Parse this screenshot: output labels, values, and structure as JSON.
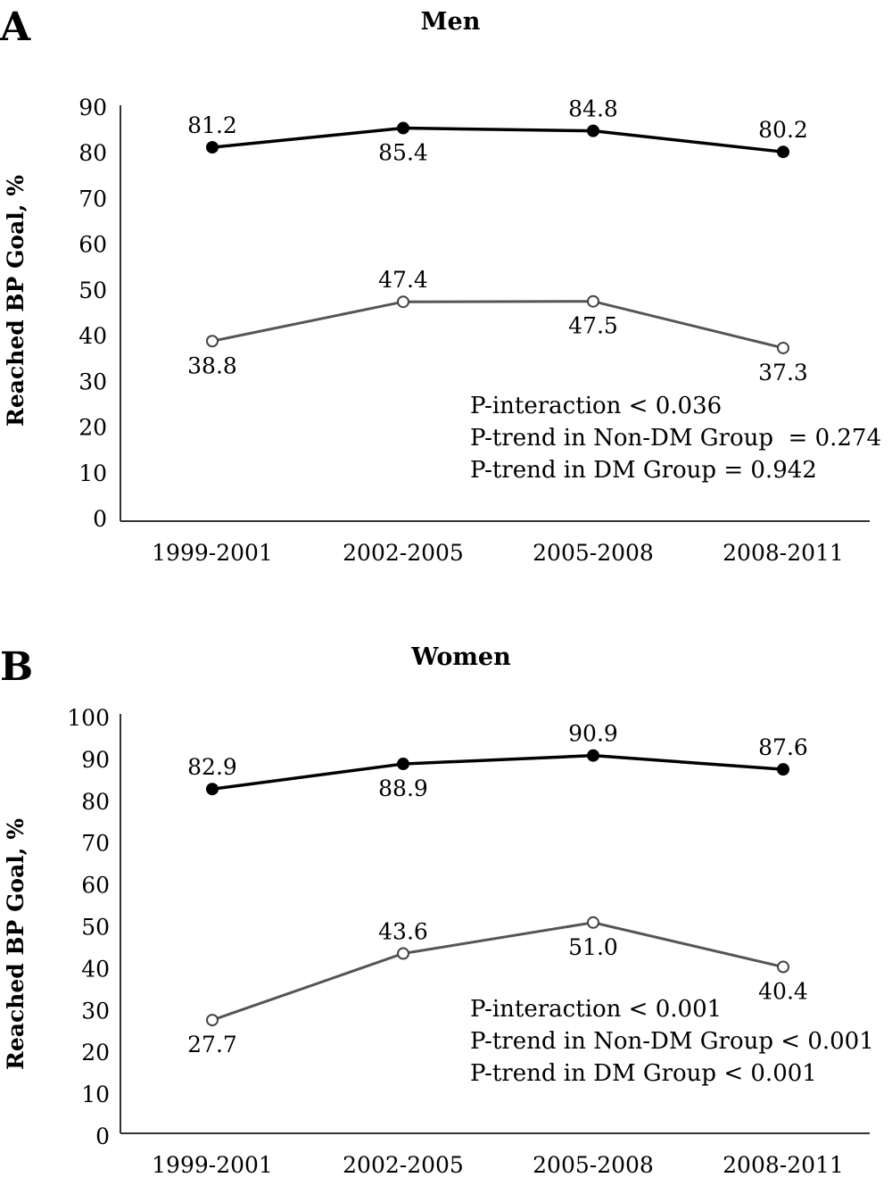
{
  "chart_data": [
    {
      "type": "line",
      "panel": "A",
      "title": "Men",
      "xlabel": "",
      "ylabel": "Reached BP Goal, %",
      "ylim": [
        0,
        90
      ],
      "yticks": [
        0,
        10,
        20,
        30,
        40,
        50,
        60,
        70,
        80,
        90
      ],
      "categories": [
        "1999-2001",
        "2002-2005",
        "2005-2008",
        "2008-2011"
      ],
      "series": [
        {
          "marker": "filled",
          "values": [
            81.2,
            85.4,
            84.8,
            80.2
          ],
          "labels": [
            "81.2",
            "85.4",
            "84.8",
            "80.2"
          ],
          "label_pos": [
            "above",
            "below",
            "above",
            "above"
          ]
        },
        {
          "marker": "open",
          "values": [
            38.8,
            47.4,
            47.5,
            37.3
          ],
          "labels": [
            "38.8",
            "47.4",
            "47.5",
            "37.3"
          ],
          "label_pos": [
            "below",
            "above",
            "below",
            "below"
          ]
        }
      ],
      "annotations": [
        "P-interaction < 0.036",
        "P-trend in Non-DM Group  = 0.274",
        "P-trend in DM Group = 0.942"
      ],
      "grid": false
    },
    {
      "type": "line",
      "panel": "B",
      "title": "Women",
      "xlabel": "",
      "ylabel": "Reached BP Goal, %",
      "ylim": [
        0,
        100
      ],
      "yticks": [
        0,
        10,
        20,
        30,
        40,
        50,
        60,
        70,
        80,
        90,
        100
      ],
      "categories": [
        "1999-2001",
        "2002-2005",
        "2005-2008",
        "2008-2011"
      ],
      "series": [
        {
          "marker": "filled",
          "values": [
            82.9,
            88.9,
            90.9,
            87.6
          ],
          "labels": [
            "82.9",
            "88.9",
            "90.9",
            "87.6"
          ],
          "label_pos": [
            "above",
            "below",
            "above",
            "above"
          ]
        },
        {
          "marker": "open",
          "values": [
            27.7,
            43.6,
            51.0,
            40.4
          ],
          "labels": [
            "27.7",
            "43.6",
            "51.0",
            "40.4"
          ],
          "label_pos": [
            "below",
            "above",
            "below",
            "below"
          ]
        }
      ],
      "annotations": [
        "P-interaction < 0.001",
        "P-trend in Non-DM Group < 0.001",
        "P-trend in DM Group < 0.001"
      ],
      "grid": false
    }
  ]
}
